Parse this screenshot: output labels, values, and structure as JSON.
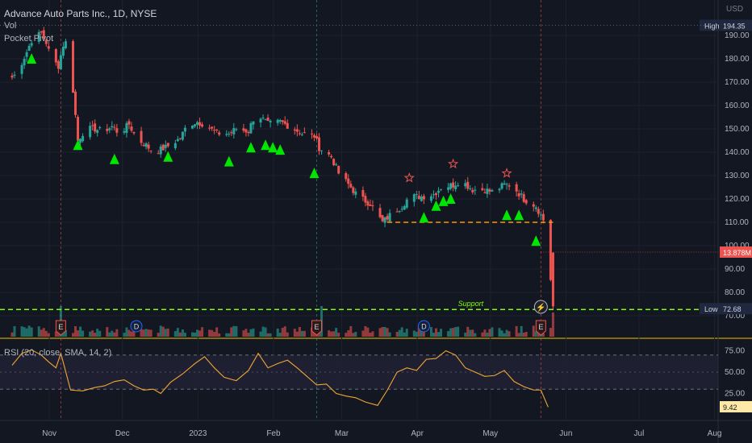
{
  "header": {
    "title": "Advance Auto Parts Inc., 1D, NYSE",
    "vol_label": "Vol",
    "pocket_label": "Pocket Pivot"
  },
  "chart_data": [
    {
      "type": "candlestick",
      "currency": "USD",
      "x_ticks": [
        "Nov",
        "Dec",
        "2023",
        "Feb",
        "Mar",
        "Apr",
        "May",
        "Jun",
        "Jul",
        "Aug"
      ],
      "y_ticks": [
        190,
        180,
        170,
        160,
        150,
        140,
        130,
        120,
        110,
        100,
        90,
        80,
        70
      ],
      "ylim": [
        67,
        200
      ],
      "close_path": [
        [
          "Oct 26",
          172
        ],
        [
          "Oct 28",
          174
        ],
        [
          "Nov 1",
          183
        ],
        [
          "Nov 3",
          188
        ],
        [
          "Nov 7",
          191
        ],
        [
          "Nov 9",
          187
        ],
        [
          "Nov 11",
          180
        ],
        [
          "Nov 14",
          177
        ],
        [
          "Nov 16",
          186
        ],
        [
          "Nov 18",
          188
        ],
        [
          "Nov 22",
          145
        ],
        [
          "Nov 25",
          150
        ],
        [
          "Nov 29",
          150
        ],
        [
          "Dec 2",
          149
        ],
        [
          "Dec 6",
          151
        ],
        [
          "Dec 9",
          148
        ],
        [
          "Dec 13",
          152
        ],
        [
          "Dec 16",
          146
        ],
        [
          "Dec 20",
          143
        ],
        [
          "Dec 23",
          140
        ],
        [
          "Dec 28",
          142
        ],
        [
          "Jan 3",
          146
        ],
        [
          "Jan 6",
          152
        ],
        [
          "Jan 10",
          153
        ],
        [
          "Jan 13",
          152
        ],
        [
          "Jan 18",
          148
        ],
        [
          "Jan 23",
          148
        ],
        [
          "Jan 26",
          150
        ],
        [
          "Jan 31",
          149
        ],
        [
          "Feb 3",
          157
        ],
        [
          "Feb 8",
          152
        ],
        [
          "Feb 13",
          153
        ],
        [
          "Feb 17",
          151
        ],
        [
          "Feb 22",
          148
        ],
        [
          "Feb 27",
          147
        ],
        [
          "Mar 1",
          142
        ],
        [
          "Mar 6",
          138
        ],
        [
          "Mar 9",
          131
        ],
        [
          "Mar 14",
          125
        ],
        [
          "Mar 17",
          121
        ],
        [
          "Mar 22",
          118
        ],
        [
          "Mar 27",
          110
        ],
        [
          "Mar 30",
          113
        ],
        [
          "Apr 4",
          117
        ],
        [
          "Apr 7",
          121
        ],
        [
          "Apr 12",
          121
        ],
        [
          "Apr 17",
          122
        ],
        [
          "Apr 20",
          125
        ],
        [
          "Apr 25",
          126
        ],
        [
          "Apr 28",
          128
        ],
        [
          "May 3",
          124
        ],
        [
          "May 8",
          124
        ],
        [
          "May 11",
          123
        ],
        [
          "May 16",
          126
        ],
        [
          "May 19",
          126
        ],
        [
          "May 24",
          120
        ],
        [
          "May 29",
          117
        ],
        [
          "Jun 1",
          111
        ],
        [
          "Jun 2",
          109
        ],
        [
          "Jun 5",
          74
        ]
      ],
      "vertical_event_lines": [
        "Nov 15",
        "Feb 28",
        "May 31"
      ],
      "earnings_markers": [
        "Nov 15",
        "Feb 28",
        "May 31"
      ],
      "dividend_markers": [
        "Dec 16",
        "Apr 13"
      ],
      "pocket_pivots": [
        [
          "Nov 3",
          180
        ],
        [
          "Nov 22",
          143
        ],
        [
          "Dec 7",
          137
        ],
        [
          "Dec 29",
          138
        ],
        [
          "Jan 23",
          136
        ],
        [
          "Feb 1",
          142
        ],
        [
          "Feb 7",
          143
        ],
        [
          "Feb 10",
          142
        ],
        [
          "Feb 13",
          141
        ],
        [
          "Feb 27",
          131
        ],
        [
          "Apr 13",
          112
        ],
        [
          "Apr 18",
          117
        ],
        [
          "Apr 21",
          119
        ],
        [
          "Apr 24",
          120
        ],
        [
          "May 17",
          113
        ],
        [
          "May 22",
          113
        ],
        [
          "May 29",
          102
        ]
      ],
      "star_markers": [
        [
          "Apr 7",
          129
        ],
        [
          "Apr 25",
          135
        ],
        [
          "May 17",
          131
        ]
      ],
      "orange_dashed_level": 110,
      "support_level": 72.68,
      "support_label": "Support",
      "labels": {
        "high_label": "High",
        "high_value": "194.35",
        "low_label": "Low",
        "low_value": "72.68",
        "volume_value": "13.878M",
        "earnings_letter": "E",
        "dividend_letter": "D",
        "lightning_glyph": "⚡"
      }
    },
    {
      "type": "line",
      "title": "RSI (20, close, SMA, 14, 2)",
      "y_ticks": [
        75,
        50,
        25
      ],
      "ylim": [
        0,
        82
      ],
      "bands": [
        30,
        70
      ],
      "last_value": "9.42",
      "values": [
        [
          "Oct 26",
          58
        ],
        [
          "Oct 30",
          72
        ],
        [
          "Nov 3",
          76
        ],
        [
          "Nov 7",
          70
        ],
        [
          "Nov 10",
          62
        ],
        [
          "Nov 13",
          55
        ],
        [
          "Nov 15",
          72
        ],
        [
          "Nov 19",
          29
        ],
        [
          "Nov 24",
          28
        ],
        [
          "Nov 29",
          32
        ],
        [
          "Dec 3",
          34
        ],
        [
          "Dec 7",
          39
        ],
        [
          "Dec 11",
          41
        ],
        [
          "Dec 15",
          34
        ],
        [
          "Dec 19",
          29
        ],
        [
          "Dec 23",
          30
        ],
        [
          "Dec 26",
          25
        ],
        [
          "Dec 30",
          38
        ],
        [
          "Jan 4",
          48
        ],
        [
          "Jan 9",
          60
        ],
        [
          "Jan 13",
          68
        ],
        [
          "Jan 17",
          55
        ],
        [
          "Jan 21",
          44
        ],
        [
          "Jan 26",
          40
        ],
        [
          "Jan 31",
          52
        ],
        [
          "Feb 4",
          72
        ],
        [
          "Feb 8",
          55
        ],
        [
          "Feb 12",
          60
        ],
        [
          "Feb 16",
          64
        ],
        [
          "Feb 20",
          55
        ],
        [
          "Feb 24",
          45
        ],
        [
          "Feb 28",
          35
        ],
        [
          "Mar 4",
          36
        ],
        [
          "Mar 8",
          25
        ],
        [
          "Mar 12",
          22
        ],
        [
          "Mar 16",
          20
        ],
        [
          "Mar 20",
          15
        ],
        [
          "Mar 25",
          11
        ],
        [
          "Mar 29",
          29
        ],
        [
          "Apr 2",
          50
        ],
        [
          "Apr 6",
          55
        ],
        [
          "Apr 10",
          52
        ],
        [
          "Apr 14",
          65
        ],
        [
          "Apr 18",
          66
        ],
        [
          "Apr 22",
          75
        ],
        [
          "Apr 26",
          70
        ],
        [
          "Apr 30",
          55
        ],
        [
          "May 4",
          50
        ],
        [
          "May 8",
          45
        ],
        [
          "May 12",
          46
        ],
        [
          "May 16",
          52
        ],
        [
          "May 20",
          39
        ],
        [
          "May 24",
          33
        ],
        [
          "May 28",
          29
        ],
        [
          "May 31",
          29
        ],
        [
          "Jun 3",
          9
        ]
      ]
    }
  ],
  "colors": {
    "background": "#131722",
    "grid": "#1e222d",
    "up": "#26a69a",
    "down": "#ef5350",
    "pivot": "#00e600",
    "rsi_line": "#f0a732",
    "support": "#7fff00",
    "orange_level": "#ff9800",
    "star": "#ef5350",
    "rsi_band": "#2a2640",
    "high_badge": "#20283f",
    "low_badge": "#20283f",
    "volume_badge": "#ef5350",
    "last_rsi_badge": "#ffe9a8"
  }
}
